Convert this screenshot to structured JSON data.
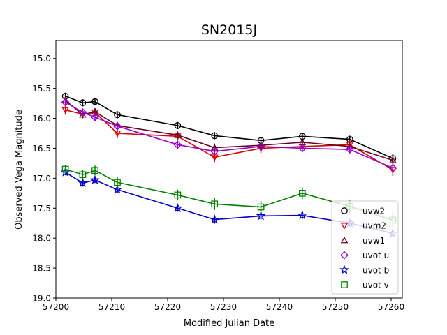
{
  "chart_data": {
    "type": "line",
    "title": "SN2015J",
    "xlabel": "Modified Julian Date",
    "ylabel": "Observed Vega Magnitude",
    "xlim": [
      57200,
      57262
    ],
    "ylim": [
      14.7,
      19.0
    ],
    "y_inverted": true,
    "x_ticks": [
      57200,
      57210,
      57220,
      57230,
      57240,
      57250,
      57260
    ],
    "y_ticks": [
      15.0,
      15.5,
      16.0,
      16.5,
      17.0,
      17.5,
      18.0,
      18.5,
      19.0
    ],
    "x_tick_labels": [
      "57200",
      "57210",
      "57220",
      "57230",
      "57240",
      "57250",
      "57260"
    ],
    "y_tick_labels": [
      "15.0",
      "15.5",
      "16.0",
      "16.5",
      "17.0",
      "17.5",
      "18.0",
      "18.5",
      "19.0"
    ],
    "grid": false,
    "legend_position": "lower-right",
    "series": [
      {
        "name": "uvw2",
        "color": "#000000",
        "marker": "circle",
        "x": [
          57201.7,
          57204.8,
          57207.0,
          57211.0,
          57221.8,
          57228.4,
          57236.7,
          57244.1,
          57252.6,
          57260.3
        ],
        "y": [
          15.63,
          15.74,
          15.72,
          15.94,
          16.12,
          16.29,
          16.37,
          16.3,
          16.35,
          16.67
        ],
        "err": [
          0.06,
          0.06,
          0.06,
          0.06,
          0.06,
          0.06,
          0.05,
          0.06,
          0.06,
          0.08
        ]
      },
      {
        "name": "uvm2",
        "color": "#dd0000",
        "marker": "triangle-down",
        "x": [
          57201.7,
          57204.8,
          57207.0,
          57211.0,
          57221.8,
          57228.4,
          57236.7,
          57244.1,
          57252.6,
          57260.3
        ],
        "y": [
          15.86,
          15.93,
          15.9,
          16.25,
          16.3,
          16.65,
          16.5,
          16.47,
          16.44,
          16.86
        ],
        "err": [
          0.08,
          0.06,
          0.06,
          0.08,
          0.07,
          0.08,
          0.08,
          0.08,
          0.07,
          0.1
        ]
      },
      {
        "name": "uvw1",
        "color": "#660022",
        "marker": "triangle-up",
        "x": [
          57201.7,
          57204.8,
          57207.0,
          57211.0,
          57221.8,
          57228.4,
          57236.7,
          57244.1,
          57252.6,
          57260.3
        ],
        "y": [
          15.7,
          15.94,
          15.89,
          16.12,
          16.28,
          16.49,
          16.45,
          16.4,
          16.47,
          16.7
        ],
        "err": [
          0.06,
          0.06,
          0.06,
          0.06,
          0.06,
          0.07,
          0.07,
          0.06,
          0.06,
          0.08
        ]
      },
      {
        "name": "uvot u",
        "color": "#9900cc",
        "marker": "diamond",
        "x": [
          57201.7,
          57204.8,
          57207.0,
          57211.0,
          57221.8,
          57228.4,
          57236.7,
          57244.1,
          57252.6,
          57260.3
        ],
        "y": [
          15.73,
          15.9,
          15.98,
          16.13,
          16.44,
          16.55,
          16.47,
          16.5,
          16.52,
          16.83
        ],
        "err": [
          0.06,
          0.05,
          0.05,
          0.06,
          0.06,
          0.06,
          0.05,
          0.06,
          0.06,
          0.06
        ]
      },
      {
        "name": "uvot b",
        "color": "#0000cc",
        "marker": "star",
        "x": [
          57201.7,
          57204.8,
          57207.0,
          57211.0,
          57221.8,
          57228.4,
          57236.7,
          57244.1,
          57252.6,
          57260.3
        ],
        "y": [
          16.9,
          17.08,
          17.03,
          17.19,
          17.5,
          17.69,
          17.63,
          17.62,
          17.75,
          17.92
        ],
        "err": [
          0.05,
          0.06,
          0.05,
          0.06,
          0.06,
          0.07,
          0.06,
          0.06,
          0.06,
          0.07
        ]
      },
      {
        "name": "uvot v",
        "color": "#008000",
        "marker": "square",
        "x": [
          57201.7,
          57204.8,
          57207.0,
          57211.0,
          57221.8,
          57228.4,
          57236.7,
          57244.1,
          57252.6,
          57260.3
        ],
        "y": [
          16.85,
          16.94,
          16.87,
          17.07,
          17.28,
          17.43,
          17.48,
          17.25,
          17.47,
          17.7
        ],
        "err": [
          0.07,
          0.08,
          0.08,
          0.09,
          0.09,
          0.1,
          0.1,
          0.1,
          0.11,
          0.14
        ]
      }
    ]
  }
}
